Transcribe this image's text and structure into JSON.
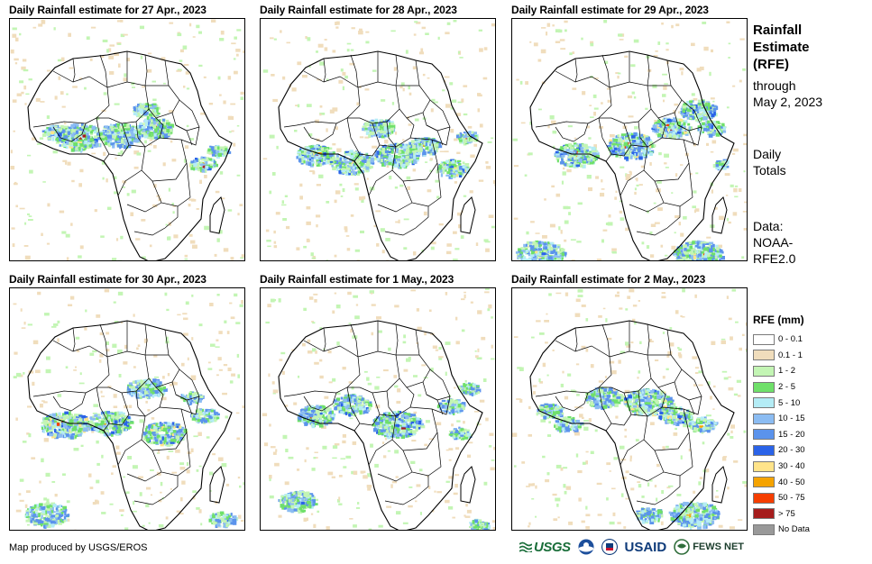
{
  "panels": [
    {
      "title": "Daily Rainfall estimate for 27 Apr., 2023",
      "variant": 0
    },
    {
      "title": "Daily Rainfall estimate for 28 Apr., 2023",
      "variant": 1
    },
    {
      "title": "Daily Rainfall estimate for 29 Apr., 2023",
      "variant": 2
    },
    {
      "title": "Daily Rainfall estimate for 30 Apr., 2023",
      "variant": 3
    },
    {
      "title": "Daily Rainfall estimate for 1 May., 2023",
      "variant": 4
    },
    {
      "title": "Daily Rainfall estimate for 2 May., 2023",
      "variant": 5
    }
  ],
  "side": {
    "title_line1": "Rainfall",
    "title_line2": "Estimate",
    "title_line3": "(RFE)",
    "through_line1": "through",
    "through_line2": "May 2, 2023",
    "totals_line1": "Daily",
    "totals_line2": "Totals",
    "data_line1": "Data:",
    "data_line2": "NOAA-",
    "data_line3": "RFE2.0"
  },
  "legend": {
    "title": "RFE (mm)",
    "items": [
      {
        "label": "0 - 0.1",
        "color": "#ffffff"
      },
      {
        "label": "0.1 - 1",
        "color": "#f0ddbc"
      },
      {
        "label": "1 - 2",
        "color": "#c3f5b4"
      },
      {
        "label": "2 - 5",
        "color": "#6fe06a"
      },
      {
        "label": "5 - 10",
        "color": "#b4ecf5"
      },
      {
        "label": "10 - 15",
        "color": "#8bbcf2"
      },
      {
        "label": "15 - 20",
        "color": "#5b93ec"
      },
      {
        "label": "20 - 30",
        "color": "#2a63e8"
      },
      {
        "label": "30 - 40",
        "color": "#ffe48a"
      },
      {
        "label": "40 - 50",
        "color": "#f5a300"
      },
      {
        "label": "50 - 75",
        "color": "#f53e00"
      },
      {
        "label": "> 75",
        "color": "#a61d1d"
      },
      {
        "label": "No Data",
        "color": "#999999"
      }
    ]
  },
  "credit": "Map produced by USGS/EROS",
  "logos": {
    "usgs": "USGS",
    "usaid": "USAID",
    "fews": "FEWS NET"
  }
}
